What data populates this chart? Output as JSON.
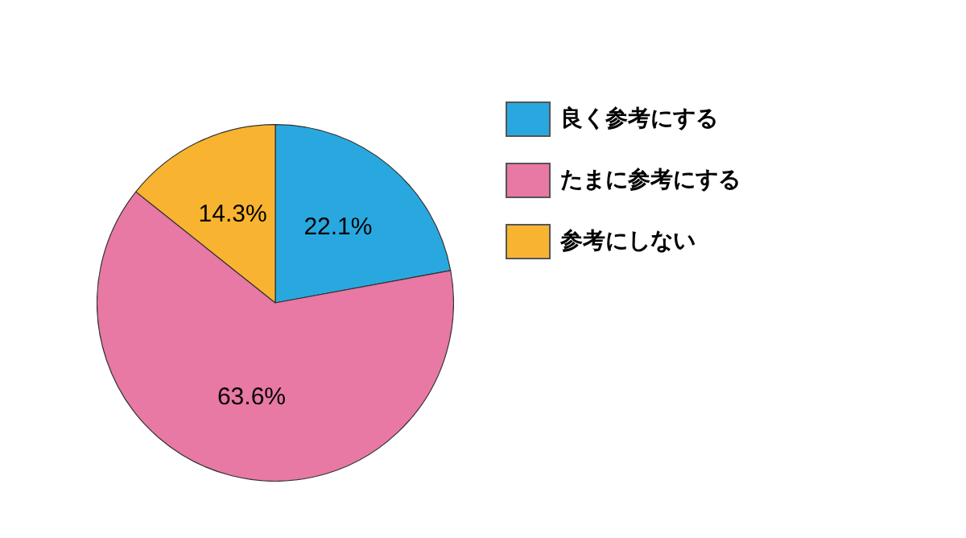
{
  "chart_data": {
    "type": "pie",
    "categories": [
      "良く参考にする",
      "たまに参考にする",
      "参考にしない"
    ],
    "values": [
      22.1,
      63.6,
      14.3
    ],
    "colors": [
      "#29a8e0",
      "#e878a4",
      "#f8b431"
    ],
    "value_labels": [
      "22.1%",
      "63.6%",
      "14.3%"
    ],
    "legend": "right"
  }
}
